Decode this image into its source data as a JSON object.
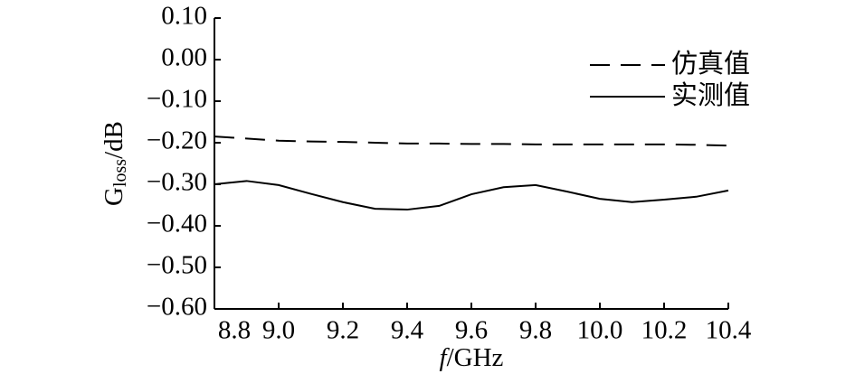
{
  "chart_data": {
    "type": "line",
    "y_label": {
      "main": "G",
      "sub": "loss",
      "unit": "/dB"
    },
    "x_label": {
      "var": "f",
      "unit": "/GHz"
    },
    "x": [
      8.8,
      8.9,
      9.0,
      9.1,
      9.2,
      9.3,
      9.4,
      9.5,
      9.6,
      9.7,
      9.8,
      9.9,
      10.0,
      10.1,
      10.2,
      10.3,
      10.4
    ],
    "series": [
      {
        "name": "仿真值",
        "color": "#000000",
        "dash": true,
        "values": [
          -0.185,
          -0.19,
          -0.195,
          -0.197,
          -0.198,
          -0.2,
          -0.202,
          -0.202,
          -0.203,
          -0.203,
          -0.204,
          -0.204,
          -0.204,
          -0.204,
          -0.204,
          -0.205,
          -0.207
        ]
      },
      {
        "name": "实测值",
        "color": "#000000",
        "dash": false,
        "values": [
          -0.3,
          -0.292,
          -0.302,
          -0.323,
          -0.343,
          -0.359,
          -0.361,
          -0.352,
          -0.324,
          -0.307,
          -0.302,
          -0.318,
          -0.335,
          -0.343,
          -0.337,
          -0.33,
          -0.315
        ]
      }
    ],
    "xlim": [
      8.8,
      10.4
    ],
    "xticks": [
      8.8,
      {
        "value": 9,
        "label": "9.0"
      },
      9.2,
      9.4,
      9.6,
      9.8,
      {
        "value": 10,
        "label": "10.0"
      },
      10.2,
      10.4
    ],
    "ylim": [
      -0.6,
      0.1
    ],
    "yticks": [
      {
        "value": 0.1,
        "label": "0.10"
      },
      {
        "value": 0,
        "label": "0.00"
      },
      {
        "value": -0.1,
        "label": "−0.10"
      },
      {
        "value": -0.2,
        "label": "−0.20"
      },
      {
        "value": -0.3,
        "label": "−0.30"
      },
      {
        "value": -0.4,
        "label": "−0.40"
      },
      {
        "value": -0.5,
        "label": "−0.50"
      },
      {
        "value": -0.6,
        "label": "−0.60"
      }
    ],
    "legend": "upper right",
    "grid": false
  }
}
